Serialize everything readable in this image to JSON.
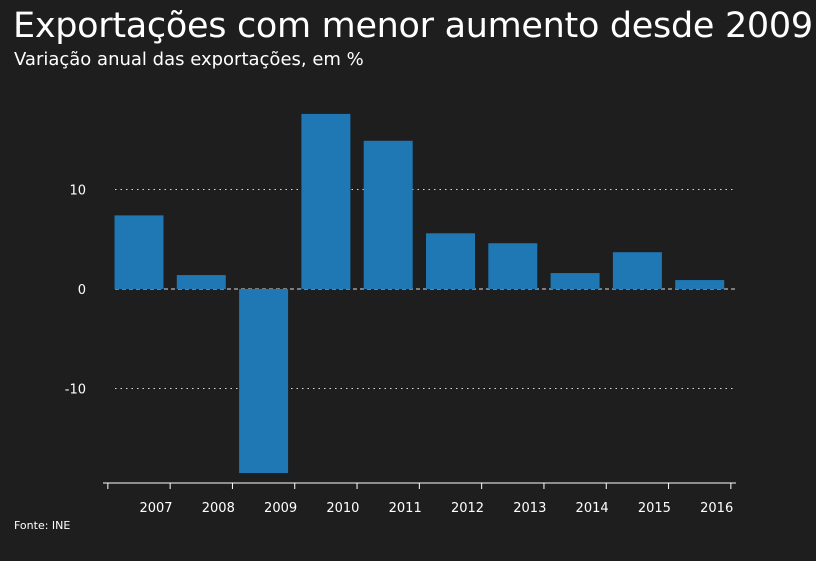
{
  "header": {
    "title": "Exportações com menor aumento desde 2009",
    "subtitle": "Variação anual das exportações, em %"
  },
  "footer": {
    "source": "Fonte: INE"
  },
  "colors": {
    "background": "#1e1e1e",
    "bar": "#1f77b4",
    "text": "#ffffff",
    "grid": "#d9d9d9"
  },
  "chart_data": {
    "type": "bar",
    "title": "Exportações com menor aumento desde 2009",
    "subtitle": "Variação anual das exportações, em %",
    "xlabel": "",
    "ylabel": "",
    "categories": [
      "2007",
      "2008",
      "2009",
      "2010",
      "2011",
      "2012",
      "2013",
      "2014",
      "2015",
      "2016"
    ],
    "values": [
      7.4,
      1.4,
      -18.5,
      17.6,
      14.9,
      5.6,
      4.6,
      1.6,
      3.7,
      0.9
    ],
    "ylim": [
      -19.5,
      19.5
    ],
    "yticks": [
      -10,
      0,
      10
    ],
    "ytick_labels": [
      "-10",
      "0",
      "10"
    ],
    "grid": "horizontal dotted",
    "legend": "none"
  }
}
